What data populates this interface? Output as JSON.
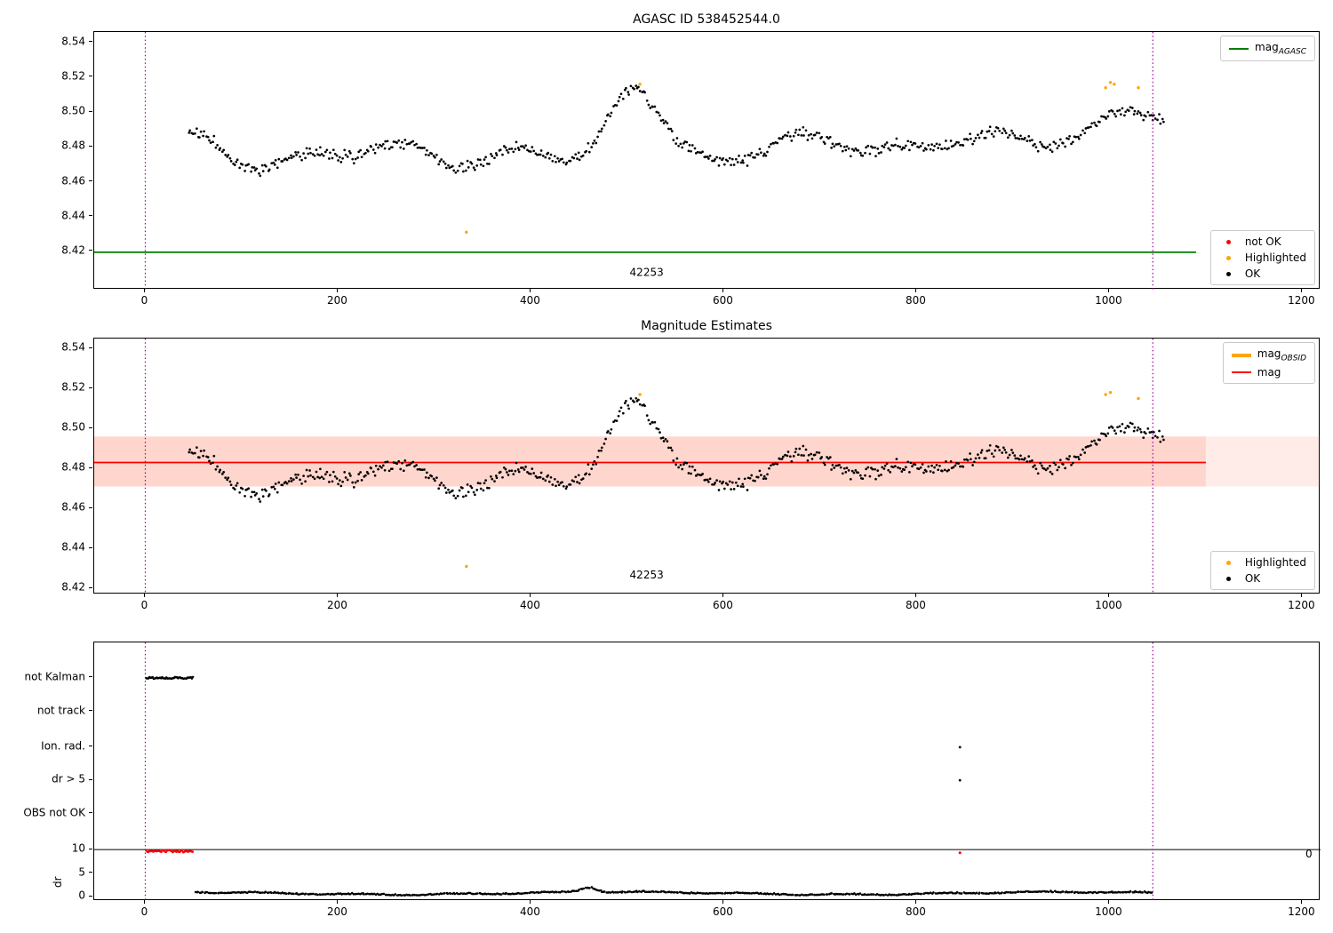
{
  "figure": {
    "background": "#ffffff"
  },
  "colors": {
    "ok": "#000000",
    "not_ok": "#ff0000",
    "highlighted": "#ffa500",
    "mag_agasc_line": "#008000",
    "mag_line": "#ff0000",
    "mag_obsid_line": "#ffa500",
    "band_fill": "#ff6347",
    "vline": "#990099",
    "dr_limit_line": "#000000"
  },
  "magnitude_series_spec": {
    "seed": 20240,
    "x_start": 45,
    "x_end": 1057,
    "step": 1.65,
    "mean": 8.4812,
    "noise": 0.0033,
    "waves": [
      [
        85,
        2.0,
        0.0055
      ],
      [
        37,
        0.8,
        0.0042
      ],
      [
        16.5,
        4.0,
        0.0026
      ]
    ],
    "bumps": [
      [
        100,
        25,
        -0.009
      ],
      [
        330,
        26,
        -0.008
      ],
      [
        452,
        26,
        -0.014
      ],
      [
        510,
        24,
        0.026
      ],
      [
        585,
        38,
        -0.009
      ],
      [
        660,
        30,
        0.007
      ],
      [
        862,
        45,
        0.012
      ],
      [
        950,
        40,
        -0.012
      ],
      [
        1035,
        55,
        0.017
      ]
    ]
  },
  "chart_data": [
    {
      "type": "scatter",
      "title": "AGASC ID 538452544.0",
      "xlim": [
        -53,
        1219
      ],
      "ylim": [
        8.398,
        8.546
      ],
      "xticks": [
        0,
        200,
        400,
        600,
        800,
        1000,
        1200
      ],
      "ytick_labels": [
        "8.54",
        "8.52",
        "8.50",
        "8.48",
        "8.46",
        "8.44",
        "8.42"
      ],
      "ytick_values": [
        8.54,
        8.52,
        8.5,
        8.48,
        8.46,
        8.44,
        8.42
      ],
      "mag_agasc_value": 8.4195,
      "line_span": [
        -53,
        1090
      ],
      "vlines": [
        0,
        1045
      ],
      "obsid_label": {
        "text": "42253",
        "x": 520,
        "y": 8.406
      },
      "highlighted_points": [
        [
          333,
          8.431
        ],
        [
          513,
          8.516
        ],
        [
          996,
          8.514
        ],
        [
          1001,
          8.517
        ],
        [
          1005,
          8.516
        ],
        [
          1030,
          8.514
        ]
      ],
      "legend_top": [
        {
          "marker": "line",
          "color": "#008000",
          "width": 2,
          "label": "mag",
          "sub": "AGASC"
        }
      ],
      "legend_bottom": [
        {
          "marker": "dot",
          "color": "#ff0000",
          "label": "not OK"
        },
        {
          "marker": "dot",
          "color": "#ffa500",
          "label": "Highlighted"
        },
        {
          "marker": "dot",
          "color": "#000000",
          "label": "OK"
        }
      ]
    },
    {
      "type": "scatter",
      "title": "Magnitude Estimates",
      "xlim": [
        -53,
        1219
      ],
      "ylim": [
        8.417,
        8.545
      ],
      "xticks": [
        0,
        200,
        400,
        600,
        800,
        1000,
        1200
      ],
      "ytick_labels": [
        "8.54",
        "8.52",
        "8.50",
        "8.48",
        "8.46",
        "8.44",
        "8.42"
      ],
      "ytick_values": [
        8.54,
        8.52,
        8.5,
        8.48,
        8.46,
        8.44,
        8.42
      ],
      "mag_value": 8.483,
      "band": [
        8.471,
        8.496
      ],
      "band_inner_span": [
        -53,
        1100
      ],
      "line_span": [
        -53,
        1100
      ],
      "vlines": [
        0,
        1045
      ],
      "obsid_label": {
        "text": "42253",
        "x": 520,
        "y": 8.425
      },
      "highlighted_points": [
        [
          333,
          8.431
        ],
        [
          513,
          8.517
        ],
        [
          996,
          8.517
        ],
        [
          1001,
          8.518
        ],
        [
          1030,
          8.515
        ]
      ],
      "legend_top": [
        {
          "marker": "line",
          "color": "#ffa500",
          "width": 4,
          "label": "mag",
          "sub": "OBSID"
        },
        {
          "marker": "line",
          "color": "#ff0000",
          "width": 2,
          "label": "mag"
        }
      ],
      "legend_bottom": [
        {
          "marker": "dot",
          "color": "#ffa500",
          "label": "Highlighted"
        },
        {
          "marker": "dot",
          "color": "#000000",
          "label": "OK"
        }
      ]
    },
    {
      "type": "flags",
      "rows": [
        "not Kalman",
        "not track",
        "Ion. rad.",
        "dr > 5",
        "OBS not OK"
      ],
      "dr_ticks": [
        10,
        5,
        0
      ],
      "ylabel": "dr",
      "xlim": [
        -53,
        1219
      ],
      "xticks": [
        0,
        200,
        400,
        600,
        800,
        1000,
        1200
      ],
      "vlines": [
        0,
        1045
      ],
      "dr_limit": 10,
      "not_kalman_span": [
        1,
        50
      ],
      "red_dr_row": {
        "span": [
          1,
          50
        ],
        "y_min": 9.42,
        "y_max": 9.92
      },
      "isolated_points": {
        "ion_rad_x": [
          845
        ],
        "dr_gt5_x": [
          845
        ],
        "red_dr_points": [
          [
            845,
            9.3
          ]
        ]
      },
      "right_edge_label": "0",
      "dr_series_spec": {
        "seed": 77,
        "x_start": 52,
        "x_end": 1045,
        "step": 1.55,
        "base": 0.62,
        "noise": 0.14,
        "waves": [
          [
            74,
            1.2,
            0.27
          ],
          [
            16,
            0.3,
            0.12
          ]
        ],
        "spike": [
          460,
          8,
          1.05
        ]
      }
    }
  ]
}
